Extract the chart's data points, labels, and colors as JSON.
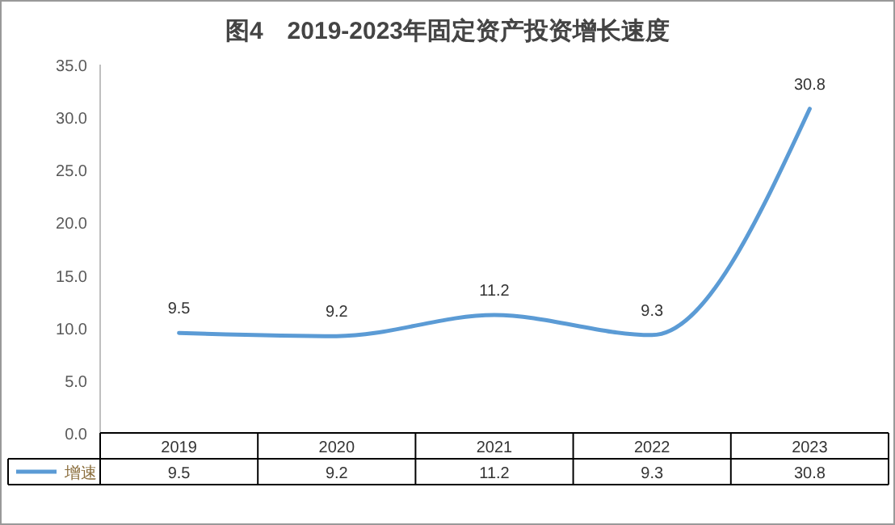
{
  "chart_data": {
    "type": "line",
    "title": "图4　2019-2023年固定资产投资增长速度",
    "categories": [
      "2019",
      "2020",
      "2021",
      "2022",
      "2023"
    ],
    "series": [
      {
        "name": "增速",
        "color": "#5b9bd5",
        "values": [
          9.5,
          9.2,
          11.2,
          9.3,
          30.8
        ],
        "value_labels": [
          "9.5",
          "9.2",
          "11.2",
          "9.3",
          "30.8"
        ]
      }
    ],
    "ylim": [
      0,
      35
    ],
    "yticks": [
      {
        "value": 0,
        "label": "0.0"
      },
      {
        "value": 5,
        "label": "5.0"
      },
      {
        "value": 10,
        "label": "10.0"
      },
      {
        "value": 15,
        "label": "15.0"
      },
      {
        "value": 20,
        "label": "20.0"
      },
      {
        "value": 25,
        "label": "25.0"
      },
      {
        "value": 30,
        "label": "30.0"
      },
      {
        "value": 35,
        "label": "35.0"
      }
    ],
    "annotations": [
      {
        "text": "9.5",
        "x": "2019",
        "y": 9.5
      },
      {
        "text": "9.2",
        "x": "2020",
        "y": 9.2
      },
      {
        "text": "11.2",
        "x": "2021",
        "y": 11.2
      },
      {
        "text": "9.3",
        "x": "2022",
        "y": 9.3
      },
      {
        "text": "30.8",
        "x": "2023",
        "y": 30.8
      }
    ],
    "data_labels": true,
    "legend": "bottom",
    "grid": false,
    "marker": "none",
    "line_style": "solid"
  }
}
